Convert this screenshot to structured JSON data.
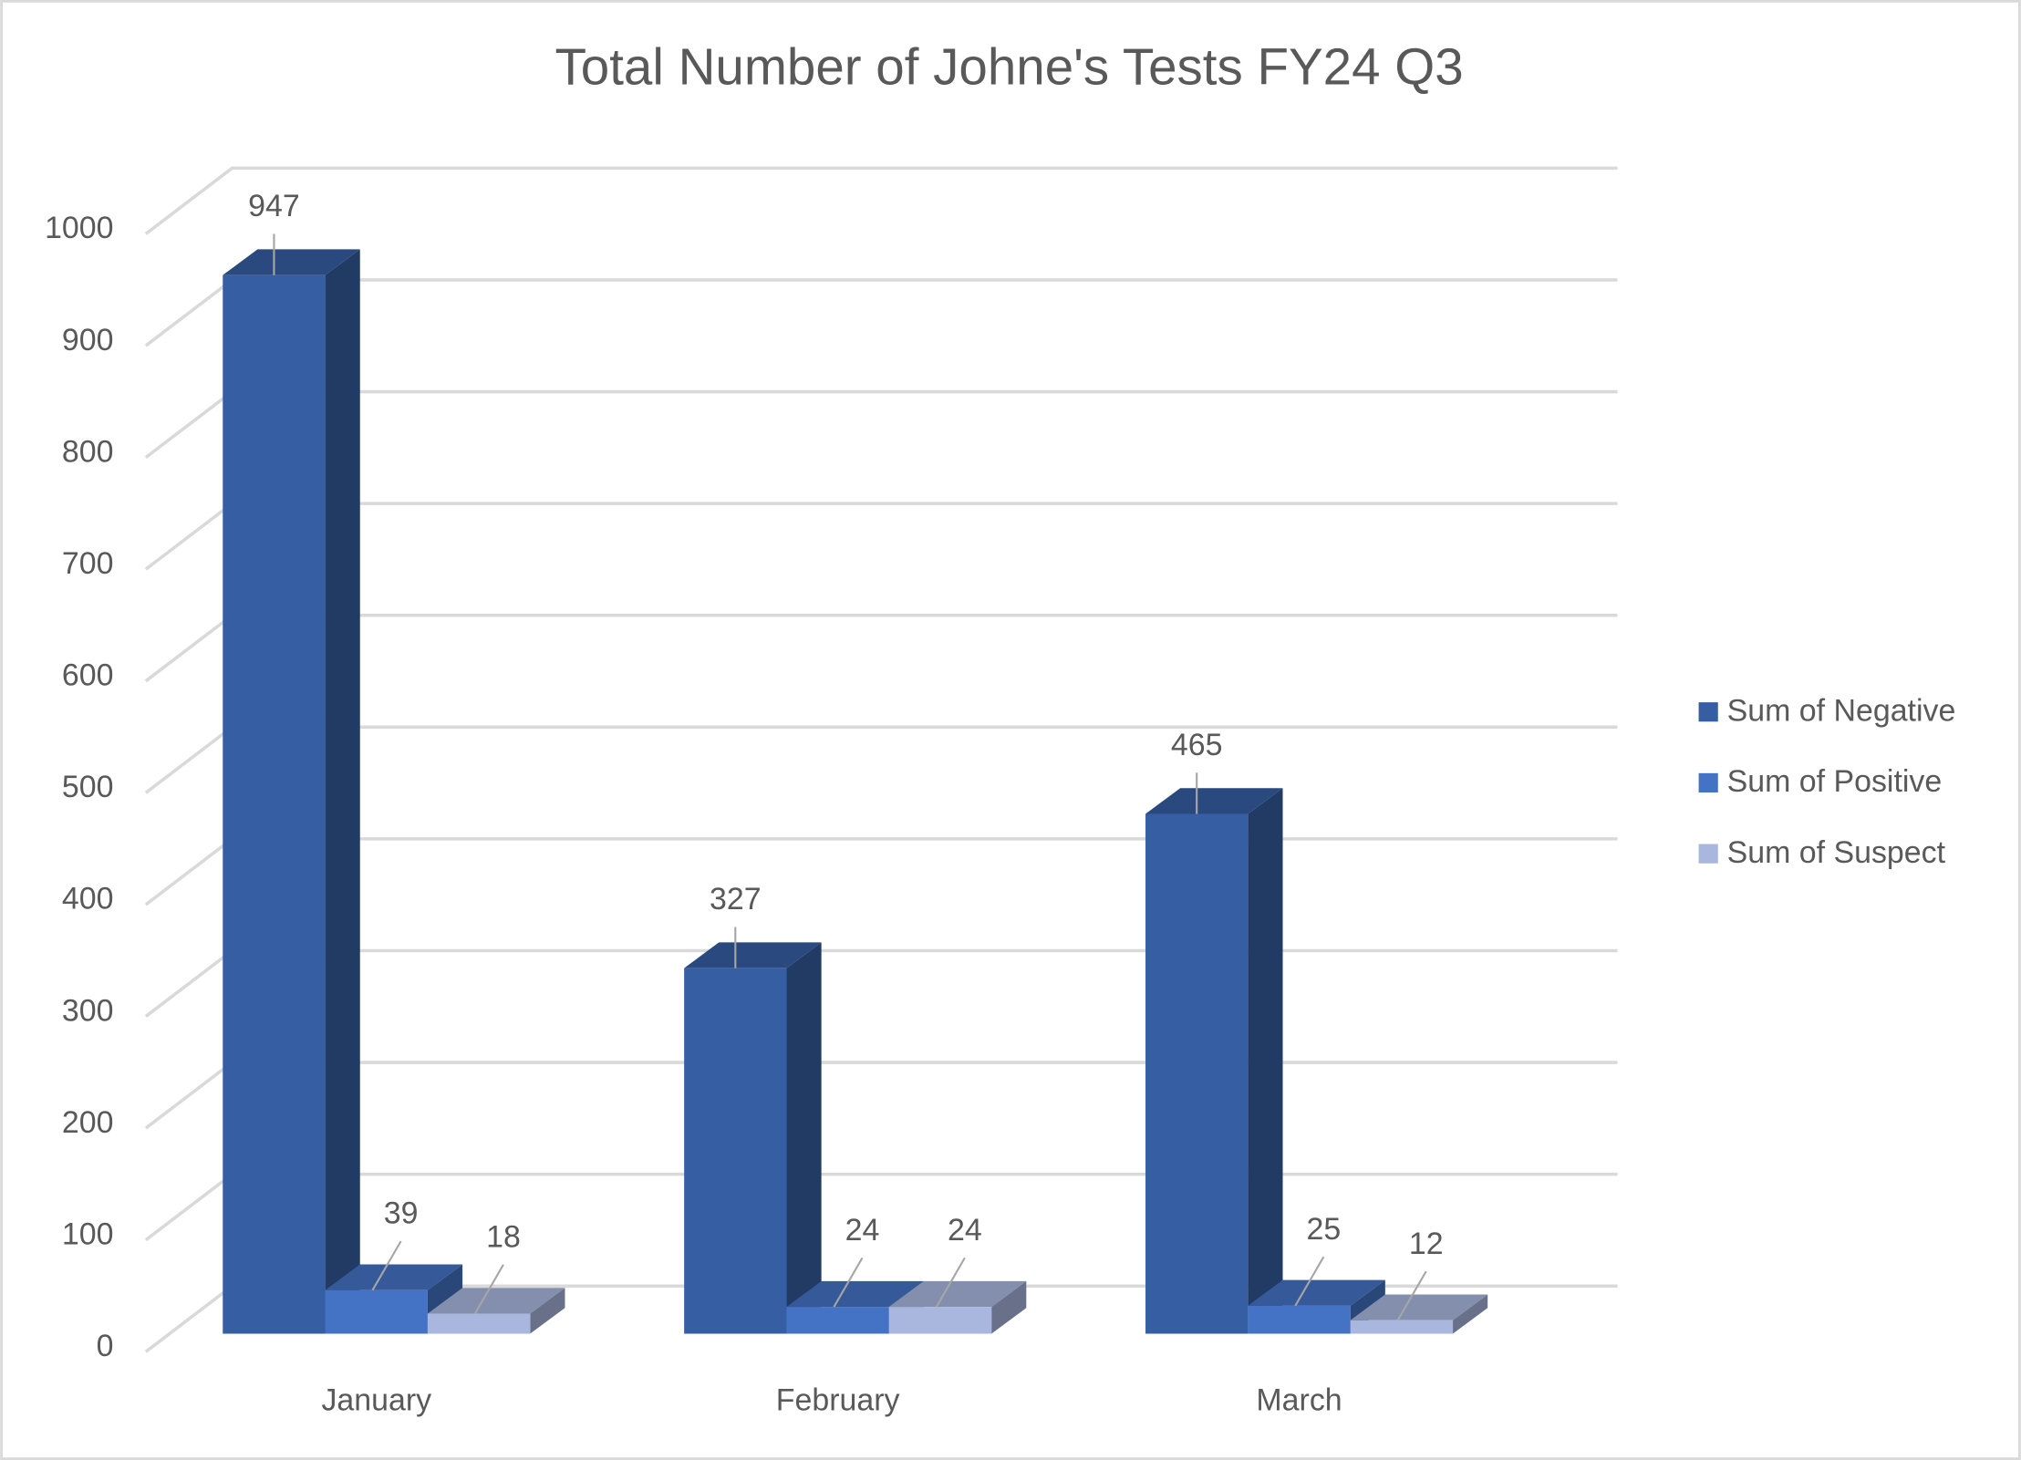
{
  "chart_data": {
    "type": "bar",
    "title": "Total Number of Johne's Tests FY24 Q3",
    "categories": [
      "January",
      "February",
      "March"
    ],
    "series": [
      {
        "name": "Sum of Negative",
        "color": "#365fa3",
        "values": [
          947,
          327,
          465
        ]
      },
      {
        "name": "Sum of Positive",
        "color": "#4472c4",
        "values": [
          39,
          24,
          25
        ]
      },
      {
        "name": "Sum of Suspect",
        "color": "#a9b7df",
        "values": [
          18,
          24,
          12
        ]
      }
    ],
    "ylim": [
      0,
      1000
    ],
    "yticks": [
      0,
      100,
      200,
      300,
      400,
      500,
      600,
      700,
      800,
      900,
      1000
    ],
    "grid": true,
    "legend": "right"
  }
}
